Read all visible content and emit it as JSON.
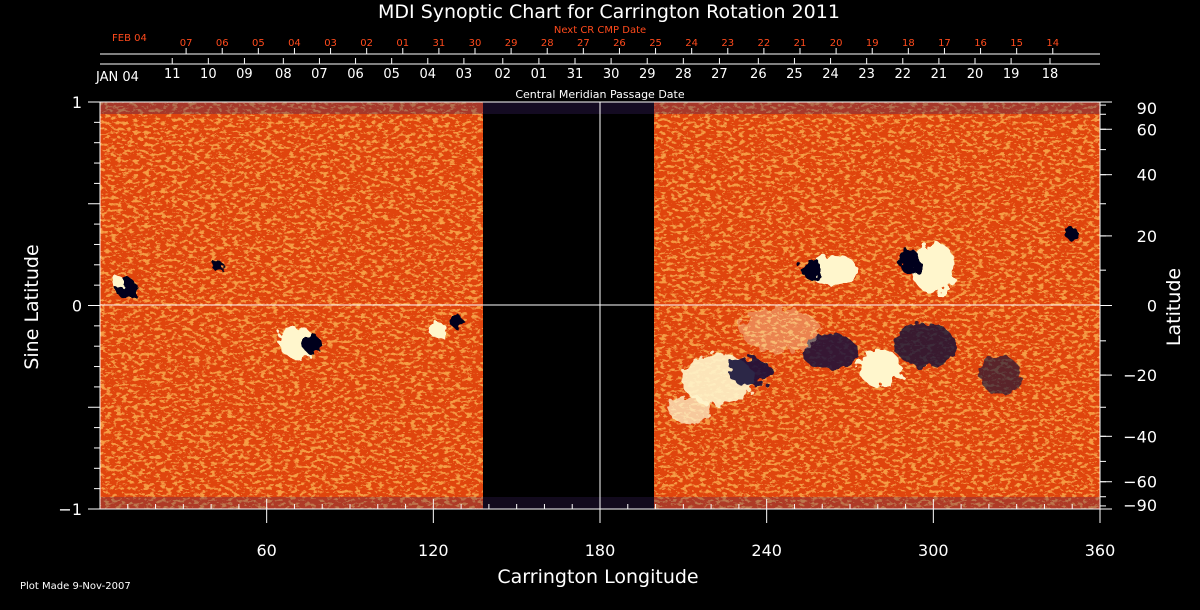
{
  "chart_data": {
    "type": "heatmap",
    "title": "MDI Synoptic Chart for Carrington Rotation 2011",
    "xlabel": "Carrington Longitude",
    "ylabel_left": "Sine Latitude",
    "ylabel_right": "Latitude",
    "xlim": [
      0,
      360
    ],
    "ylim": [
      -1,
      1
    ],
    "x_ticks": [
      60,
      120,
      180,
      240,
      300,
      360
    ],
    "y_ticks_left": [
      "1",
      "0",
      "−1"
    ],
    "y_ticks_right_deg": [
      90,
      60,
      40,
      20,
      0,
      -20,
      -40,
      -60,
      -90
    ],
    "y_ticks_right_labels": [
      "90",
      "60",
      "40",
      "20",
      "0",
      "−20",
      "−40",
      "−60",
      "−90"
    ],
    "data_gap_longitude": [
      138,
      199
    ],
    "equator_line": 0,
    "central_meridian_line": 180,
    "cmp_axis": {
      "label": "Central Meridian Passage Date",
      "start_label": "JAN 04",
      "dates": [
        "11",
        "10",
        "09",
        "08",
        "07",
        "06",
        "05",
        "04",
        "03",
        "02",
        "01",
        "31",
        "30",
        "29",
        "28",
        "27",
        "26",
        "25",
        "24",
        "23",
        "22",
        "21",
        "20",
        "19",
        "18"
      ],
      "dates_longitude": [
        26,
        39,
        52,
        66,
        79,
        92,
        105,
        118,
        131,
        145,
        158,
        171,
        184,
        197,
        210,
        223,
        237,
        250,
        263,
        276,
        289,
        302,
        315,
        328,
        342
      ]
    },
    "next_cr_axis": {
      "label": "Next CR CMP Date",
      "start_label": "FEB 04",
      "dates": [
        "07",
        "06",
        "05",
        "04",
        "03",
        "02",
        "01",
        "31",
        "30",
        "29",
        "28",
        "27",
        "26",
        "25",
        "24",
        "23",
        "22",
        "21",
        "20",
        "19",
        "18",
        "17",
        "16",
        "15",
        "14"
      ],
      "dates_longitude": [
        31,
        44,
        57,
        70,
        83,
        96,
        109,
        122,
        135,
        148,
        161,
        174,
        187,
        200,
        213,
        226,
        239,
        252,
        265,
        278,
        291,
        304,
        317,
        330,
        343
      ]
    },
    "colors": {
      "background_field": "#e84a10",
      "positive_polarity": "#fffbd8",
      "negative_polarity": "#0a0830",
      "next_cr_text": "#ff4a1c",
      "gap": "#000000"
    }
  },
  "footer": {
    "plot_made": "Plot Made  9-Nov-2007"
  }
}
